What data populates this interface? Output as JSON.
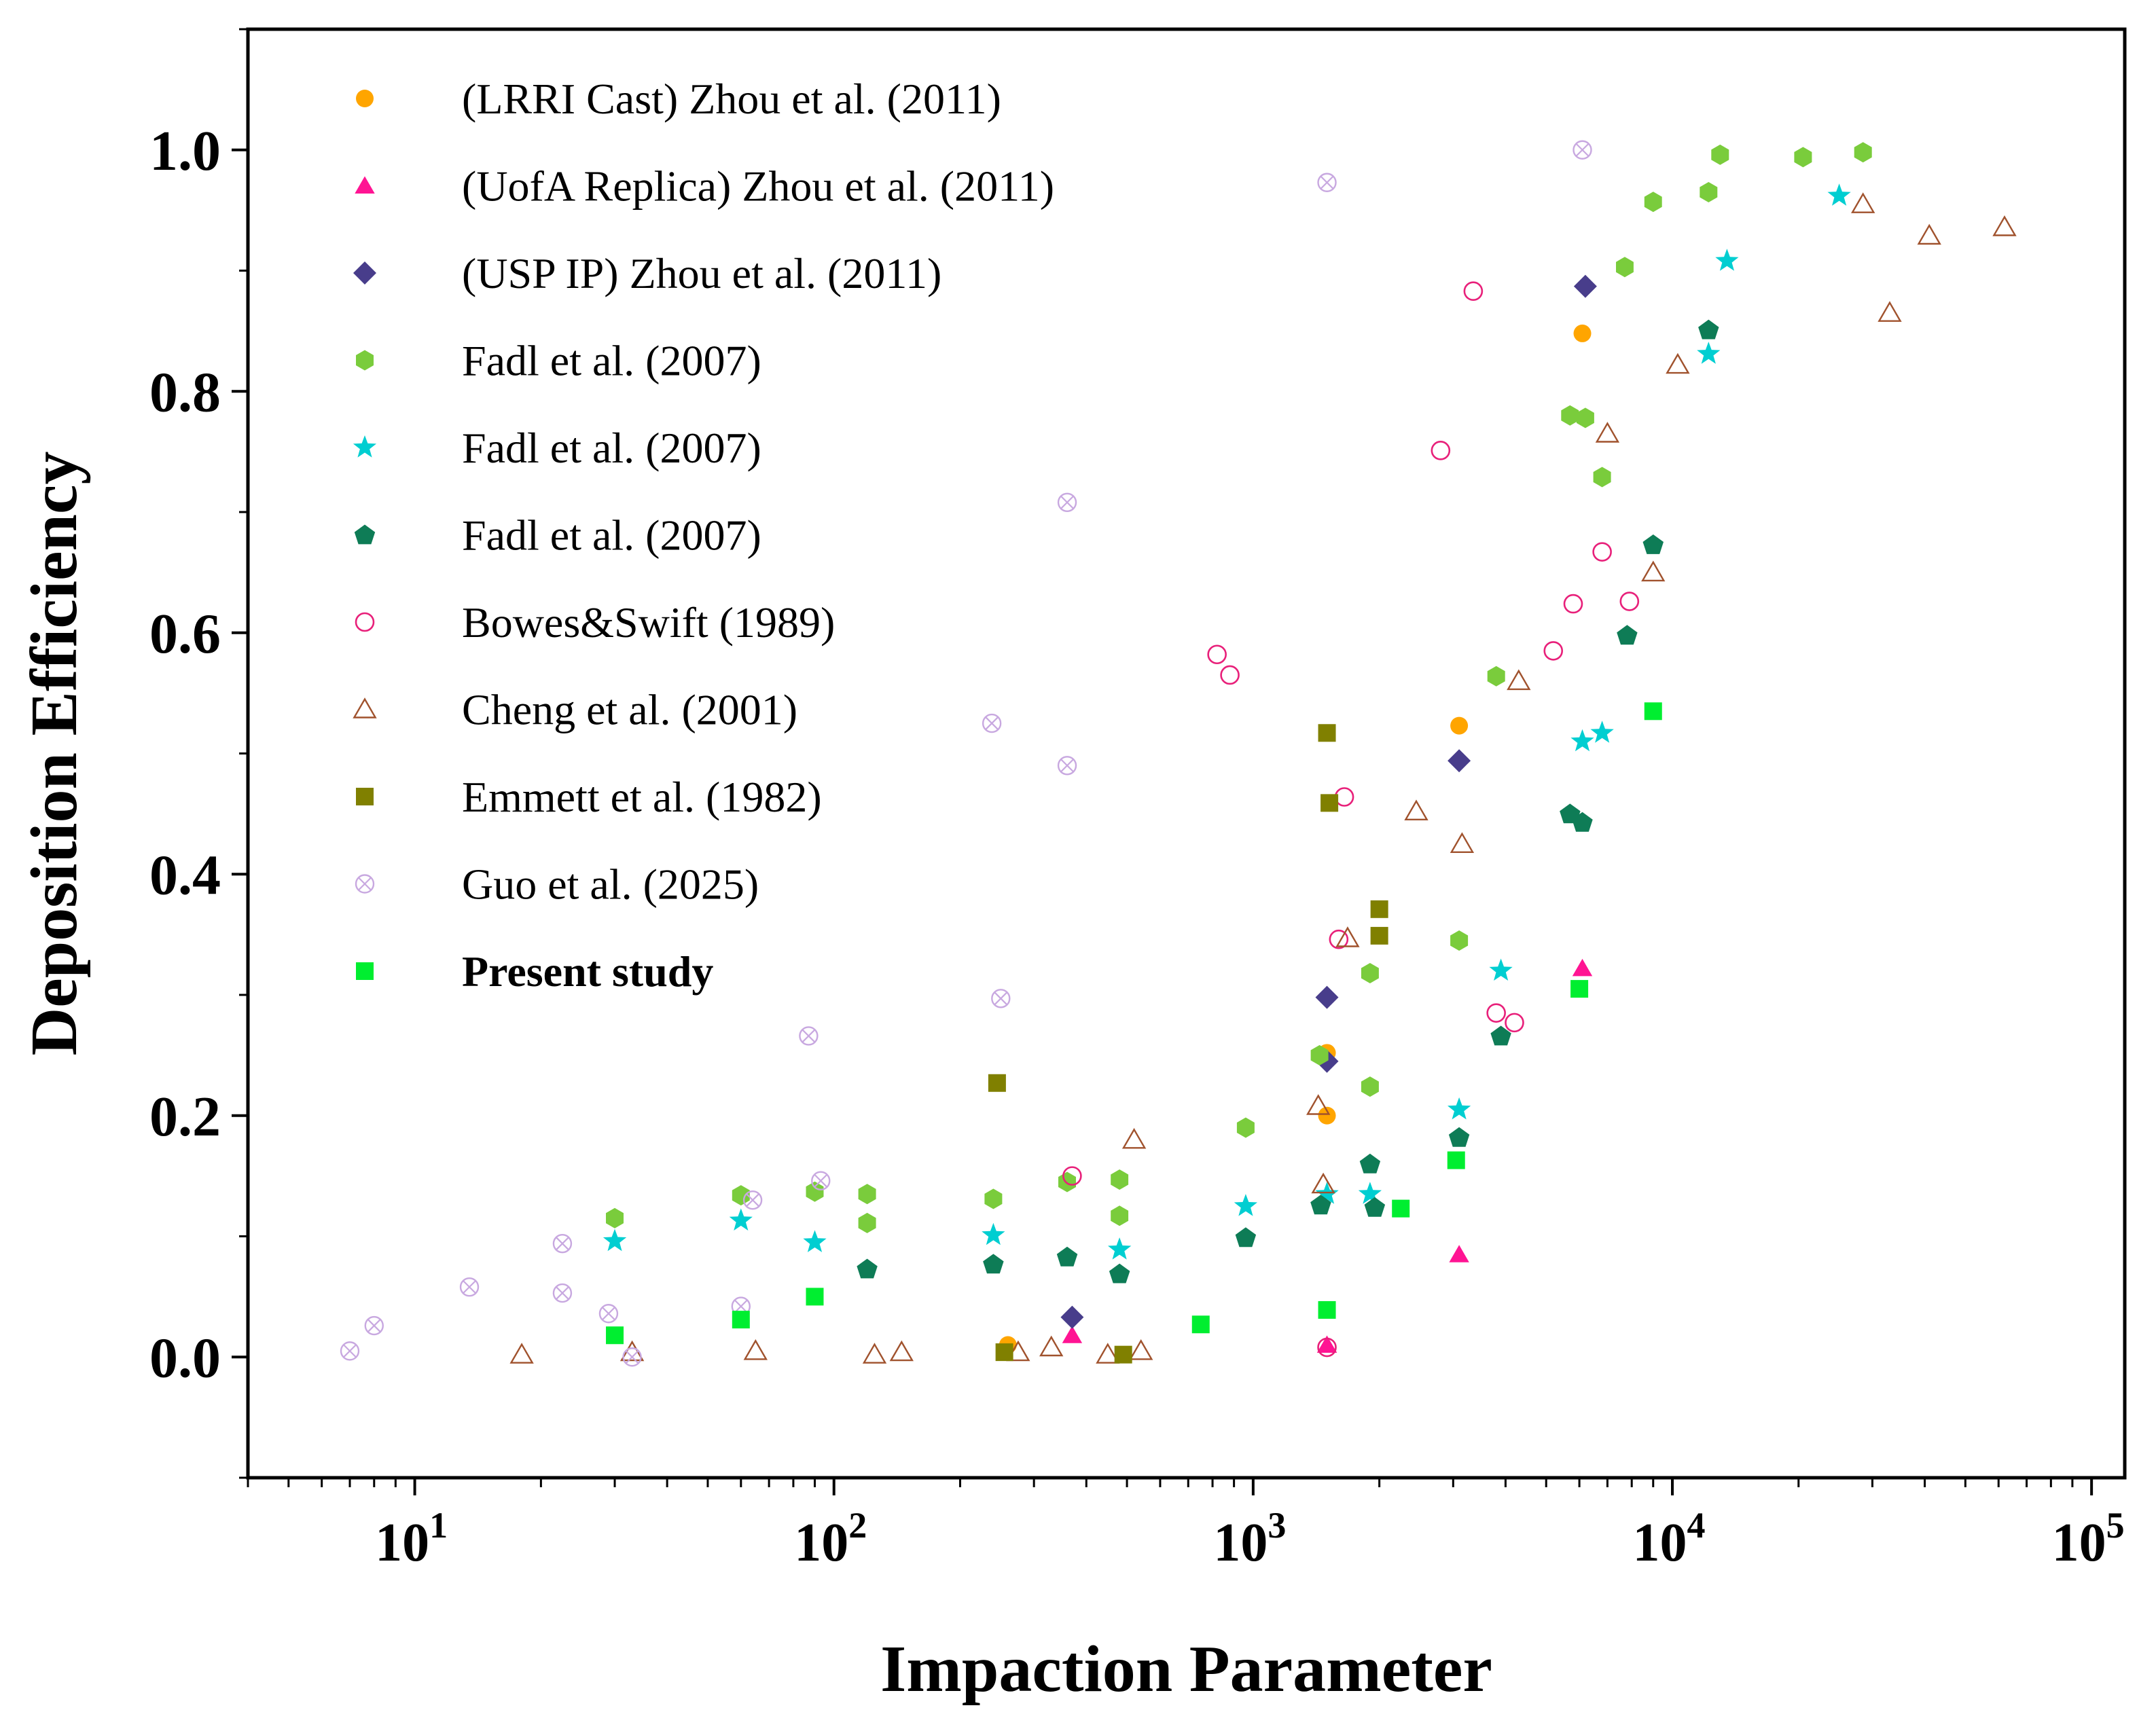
{
  "chart_data": {
    "type": "scatter",
    "title": "",
    "xlabel": "Impaction Parameter",
    "ylabel": "Deposition Efficiency",
    "xscale": "log",
    "xlim": [
      4,
      120000
    ],
    "ylim": [
      -0.1,
      1.1
    ],
    "grid": false,
    "legend_position": "top-left",
    "x_ticks": [
      {
        "value": 10,
        "base": "10",
        "exp": "1"
      },
      {
        "value": 100,
        "base": "10",
        "exp": "2"
      },
      {
        "value": 1000,
        "base": "10",
        "exp": "3"
      },
      {
        "value": 10000,
        "base": "10",
        "exp": "4"
      },
      {
        "value": 100000,
        "base": "10",
        "exp": "5"
      }
    ],
    "y_ticks": [
      {
        "value": 0.0,
        "label": "0.0"
      },
      {
        "value": 0.2,
        "label": "0.2"
      },
      {
        "value": 0.4,
        "label": "0.4"
      },
      {
        "value": 0.6,
        "label": "0.6"
      },
      {
        "value": 0.8,
        "label": "0.8"
      },
      {
        "value": 1.0,
        "label": "1.0"
      }
    ],
    "series": [
      {
        "name": "(LRRI Cast) Zhou et al. (2011)",
        "marker": "circle-filled",
        "color": "#FFA500",
        "bold": false,
        "points": [
          [
            260,
            0.01
          ],
          [
            1500,
            0.252
          ],
          [
            1500,
            0.2
          ],
          [
            3100,
            0.523
          ],
          [
            6100,
            0.848
          ]
        ]
      },
      {
        "name": "(UofA Replica) Zhou et al. (2011)",
        "marker": "triangle-filled",
        "color": "#FF1493",
        "bold": false,
        "points": [
          [
            370,
            0.018
          ],
          [
            1500,
            0.01
          ],
          [
            3100,
            0.085
          ],
          [
            6100,
            0.322
          ]
        ]
      },
      {
        "name": "(USP IP) Zhou et al. (2011)",
        "marker": "diamond-filled",
        "color": "#483D8B",
        "bold": false,
        "points": [
          [
            370,
            0.033
          ],
          [
            1500,
            0.298
          ],
          [
            1500,
            0.245
          ],
          [
            3100,
            0.494
          ],
          [
            6200,
            0.887
          ]
        ]
      },
      {
        "name": "Fadl et al. (2007)",
        "marker": "hexagon-filled",
        "color": "#7ACC3C",
        "bold": false,
        "points": [
          [
            30,
            0.115
          ],
          [
            60,
            0.134
          ],
          [
            90,
            0.137
          ],
          [
            120,
            0.135
          ],
          [
            120,
            0.111
          ],
          [
            240,
            0.131
          ],
          [
            360,
            0.145
          ],
          [
            480,
            0.147
          ],
          [
            480,
            0.117
          ],
          [
            960,
            0.19
          ],
          [
            1440,
            0.25
          ],
          [
            1900,
            0.318
          ],
          [
            1900,
            0.224
          ],
          [
            3100,
            0.345
          ],
          [
            3800,
            0.564
          ],
          [
            5700,
            0.78
          ],
          [
            6200,
            0.778
          ],
          [
            6800,
            0.729
          ],
          [
            7700,
            0.903
          ],
          [
            9000,
            0.957
          ],
          [
            12200,
            0.965
          ],
          [
            13000,
            0.996
          ],
          [
            20500,
            0.994
          ],
          [
            28500,
            0.998
          ]
        ]
      },
      {
        "name": "Fadl et al. (2007)",
        "marker": "star-filled",
        "color": "#00CED1",
        "bold": false,
        "points": [
          [
            30,
            0.096
          ],
          [
            60,
            0.113
          ],
          [
            90,
            0.095
          ],
          [
            240,
            0.101
          ],
          [
            480,
            0.089
          ],
          [
            960,
            0.125
          ],
          [
            1500,
            0.135
          ],
          [
            1900,
            0.135
          ],
          [
            3100,
            0.205
          ],
          [
            3900,
            0.32
          ],
          [
            6100,
            0.51
          ],
          [
            6800,
            0.517
          ],
          [
            12200,
            0.831
          ],
          [
            13500,
            0.908
          ],
          [
            25000,
            0.962
          ]
        ]
      },
      {
        "name": "Fadl et al. (2007)",
        "marker": "pentagon-filled",
        "color": "#0E7C56",
        "bold": false,
        "points": [
          [
            120,
            0.073
          ],
          [
            240,
            0.077
          ],
          [
            360,
            0.083
          ],
          [
            480,
            0.069
          ],
          [
            960,
            0.099
          ],
          [
            1450,
            0.126
          ],
          [
            1900,
            0.16
          ],
          [
            1950,
            0.124
          ],
          [
            3100,
            0.182
          ],
          [
            3900,
            0.266
          ],
          [
            5700,
            0.45
          ],
          [
            6100,
            0.443
          ],
          [
            7800,
            0.598
          ],
          [
            9000,
            0.673
          ],
          [
            12200,
            0.851
          ]
        ]
      },
      {
        "name": "Bowes&Swift (1989)",
        "marker": "circle-open",
        "color": "#E8207A",
        "bold": false,
        "points": [
          [
            370,
            0.15
          ],
          [
            820,
            0.582
          ],
          [
            880,
            0.565
          ],
          [
            1500,
            0.008
          ],
          [
            1600,
            0.346
          ],
          [
            1650,
            0.464
          ],
          [
            2800,
            0.751
          ],
          [
            3350,
            0.883
          ],
          [
            3800,
            0.285
          ],
          [
            4200,
            0.277
          ],
          [
            5200,
            0.585
          ],
          [
            5800,
            0.624
          ],
          [
            6800,
            0.667
          ],
          [
            7900,
            0.626
          ]
        ]
      },
      {
        "name": "Cheng et al. (2001)",
        "marker": "triangle-open",
        "color": "#A0522D",
        "bold": false,
        "points": [
          [
            18,
            0.002
          ],
          [
            33,
            0.004
          ],
          [
            65,
            0.005
          ],
          [
            125,
            0.002
          ],
          [
            145,
            0.004
          ],
          [
            275,
            0.004
          ],
          [
            330,
            0.008
          ],
          [
            450,
            0.002
          ],
          [
            520,
            0.18
          ],
          [
            540,
            0.005
          ],
          [
            1430,
            0.208
          ],
          [
            1470,
            0.143
          ],
          [
            1680,
            0.347
          ],
          [
            2450,
            0.452
          ],
          [
            3150,
            0.425
          ],
          [
            4300,
            0.56
          ],
          [
            7000,
            0.765
          ],
          [
            9000,
            0.65
          ],
          [
            10300,
            0.822
          ],
          [
            28500,
            0.955
          ],
          [
            33000,
            0.865
          ],
          [
            41000,
            0.929
          ],
          [
            62000,
            0.936
          ]
        ]
      },
      {
        "name": "Emmett et al. (1982)",
        "marker": "square-filled",
        "color": "#808000",
        "bold": false,
        "points": [
          [
            245,
            0.227
          ],
          [
            255,
            0.004
          ],
          [
            490,
            0.002
          ],
          [
            1500,
            0.517
          ],
          [
            1520,
            0.459
          ],
          [
            2000,
            0.371
          ],
          [
            2000,
            0.349
          ]
        ]
      },
      {
        "name": "Guo et al. (2025)",
        "marker": "circle-x",
        "color": "#C8A8E0",
        "bold": false,
        "points": [
          [
            7,
            0.005
          ],
          [
            8,
            0.026
          ],
          [
            13.5,
            0.058
          ],
          [
            22.5,
            0.094
          ],
          [
            22.5,
            0.053
          ],
          [
            29,
            0.036
          ],
          [
            33,
            0.0
          ],
          [
            60,
            0.042
          ],
          [
            64,
            0.13
          ],
          [
            87,
            0.266
          ],
          [
            93,
            0.146
          ],
          [
            238,
            0.525
          ],
          [
            250,
            0.297
          ],
          [
            360,
            0.708
          ],
          [
            360,
            0.49
          ],
          [
            1500,
            0.973
          ],
          [
            6100,
            1.0
          ]
        ]
      },
      {
        "name": "Present study",
        "marker": "square-filled",
        "color": "#00EE30",
        "bold": true,
        "points": [
          [
            30,
            0.018
          ],
          [
            60,
            0.031
          ],
          [
            90,
            0.05
          ],
          [
            750,
            0.027
          ],
          [
            1500,
            0.039
          ],
          [
            2250,
            0.123
          ],
          [
            3050,
            0.163
          ],
          [
            6000,
            0.305
          ],
          [
            9000,
            0.535
          ]
        ]
      }
    ]
  }
}
